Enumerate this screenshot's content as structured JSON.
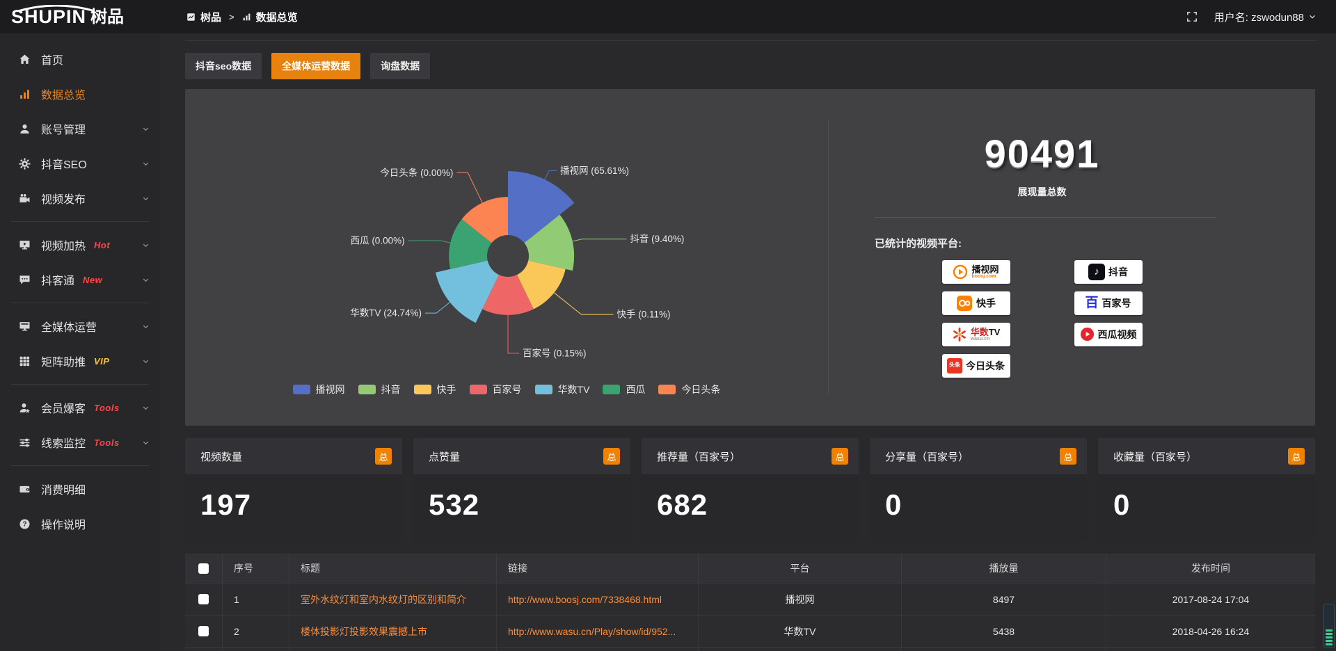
{
  "brand": {
    "logo_en": "SHUPIN",
    "logo_cn": "树品"
  },
  "topbar": {
    "breadcrumb": [
      {
        "label": "树品",
        "icon": "app"
      },
      {
        "label": "数据总览",
        "icon": "bars"
      }
    ],
    "separator": ">",
    "username": "用户名: zswodun88"
  },
  "sidebar": {
    "items": [
      {
        "label": "首页",
        "icon": "home"
      },
      {
        "label": "数据总览",
        "icon": "bars",
        "active": true
      },
      {
        "label": "账号管理",
        "icon": "user",
        "chevron": true
      },
      {
        "label": "抖音SEO",
        "icon": "gear",
        "chevron": true
      },
      {
        "label": "视频发布",
        "icon": "video",
        "chevron": true,
        "divider_after": true
      },
      {
        "label": "视频加热",
        "icon": "screen",
        "badge": "Hot",
        "badge_color": "#ff4545",
        "chevron": true
      },
      {
        "label": "抖客通",
        "icon": "chat",
        "badge": "New",
        "badge_color": "#ff4545",
        "chevron": true,
        "divider_after": true
      },
      {
        "label": "全媒体运营",
        "icon": "screen2",
        "chevron": true
      },
      {
        "label": "矩阵助推",
        "icon": "grid",
        "badge": "VIP",
        "badge_color": "#fbc531",
        "chevron": true,
        "divider_after": true
      },
      {
        "label": "会员爆客",
        "icon": "member",
        "badge": "Tools",
        "badge_color": "#ff4545",
        "chevron": true
      },
      {
        "label": "线索监控",
        "icon": "sliders",
        "badge": "Tools",
        "badge_color": "#ff4545",
        "chevron": true,
        "divider_after": true
      },
      {
        "label": "消费明细",
        "icon": "wallet"
      },
      {
        "label": "操作说明",
        "icon": "help"
      }
    ]
  },
  "tabs": [
    {
      "label": "抖音seo数据",
      "active": false
    },
    {
      "label": "全媒体运营数据",
      "active": true
    },
    {
      "label": "询盘数据",
      "active": false
    }
  ],
  "chart_data": {
    "type": "pie",
    "variant": "nightingale-rose",
    "categories": [
      "播视网",
      "抖音",
      "快手",
      "百家号",
      "华数TV",
      "西瓜",
      "今日头条"
    ],
    "values": [
      65.61,
      9.4,
      0.11,
      0.15,
      24.74,
      0.0,
      0.0
    ],
    "unit": "%",
    "colors": [
      "#5470c6",
      "#91cc75",
      "#fac858",
      "#ee6666",
      "#73c0de",
      "#3ba272",
      "#fc8452"
    ],
    "label_format": "{name} ({value}%)",
    "legend_position": "bottom",
    "legend": [
      "播视网",
      "抖音",
      "快手",
      "百家号",
      "华数TV",
      "西瓜",
      "今日头条"
    ]
  },
  "summary": {
    "value": "90491",
    "label": "展现量总数",
    "platforms_title": "已统计的视频平台:"
  },
  "platforms": [
    {
      "name": "播视网",
      "sub": "boosj.com",
      "logo": "boosj"
    },
    {
      "name": "抖音",
      "logo": "douyin",
      "logo_glyph": "♪"
    },
    {
      "name": "快手",
      "logo": "kuaishou"
    },
    {
      "name": "百家号",
      "logo": "baijiahao",
      "logo_glyph": "百"
    },
    {
      "name": "华数TV",
      "sub": "wasu.cn",
      "logo": "wasu"
    },
    {
      "name": "西瓜视频",
      "logo": "xigua"
    },
    {
      "name": "今日头条",
      "logo": "toutiao",
      "logo_glyph": "头条"
    }
  ],
  "stat_cards": [
    {
      "label": "视频数量",
      "badge": "总",
      "value": "197"
    },
    {
      "label": "点赞量",
      "badge": "总",
      "value": "532"
    },
    {
      "label": "推荐量（百家号）",
      "badge": "总",
      "value": "682"
    },
    {
      "label": "分享量（百家号）",
      "badge": "总",
      "value": "0"
    },
    {
      "label": "收藏量（百家号）",
      "badge": "总",
      "value": "0"
    }
  ],
  "table": {
    "columns": [
      "",
      "序号",
      "标题",
      "链接",
      "平台",
      "播放量",
      "发布时间"
    ],
    "rows": [
      {
        "index": "1",
        "title": "室外水纹灯和室内水纹灯的区别和简介",
        "link": "http://www.boosj.com/7338468.html",
        "platform": "播视网",
        "plays": "8497",
        "published": "2017-08-24 17:04"
      },
      {
        "index": "2",
        "title": "楼体投影灯投影效果震撼上市",
        "link": "http://www.wasu.cn/Play/show/id/952...",
        "platform": "华数TV",
        "plays": "5438",
        "published": "2018-04-26 16:24"
      }
    ]
  },
  "colors": {
    "accent": "#e8820f",
    "badge": "#f08200",
    "link": "#f98e3d",
    "panel": "#414144"
  }
}
